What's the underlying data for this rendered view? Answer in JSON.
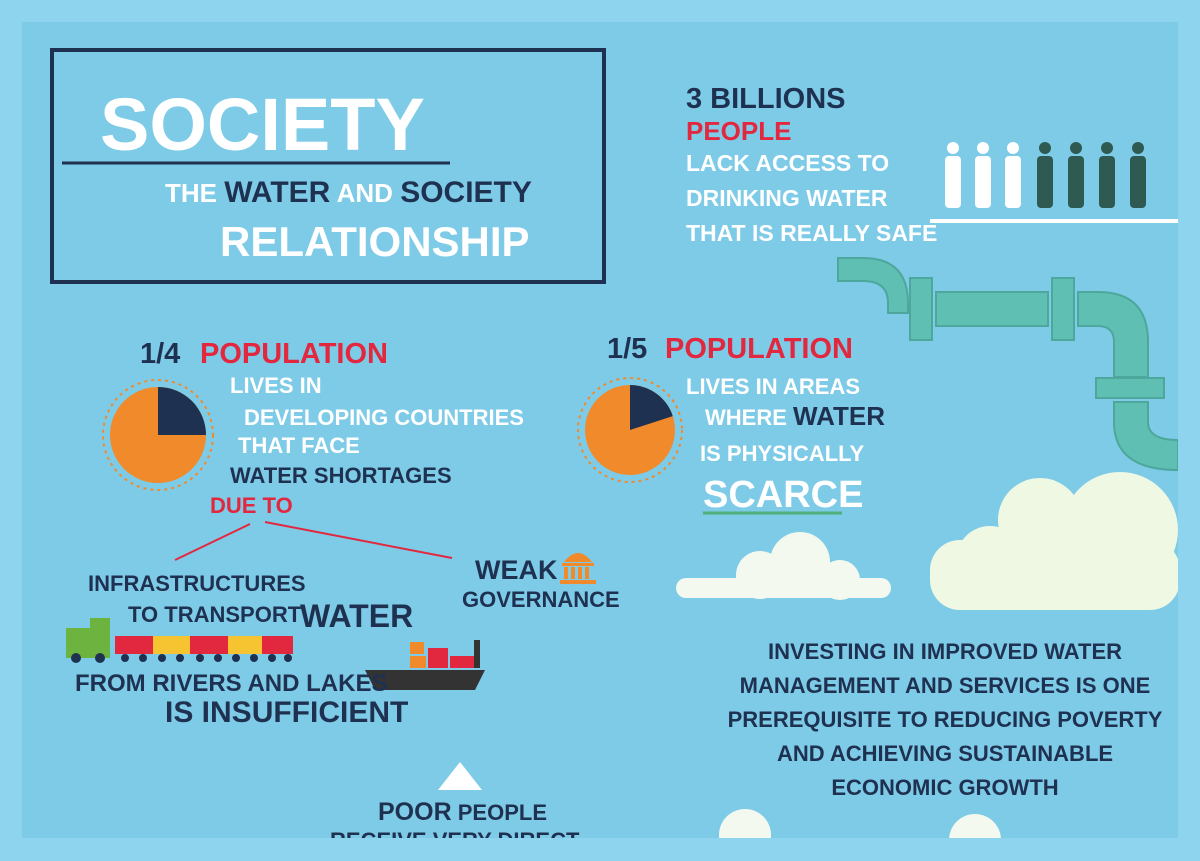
{
  "title": {
    "heading": "SOCIETY",
    "subtitle": [
      "THE",
      "WATER",
      "AND",
      "SOCIETY",
      "RELATIONSHIP"
    ]
  },
  "stat_people": {
    "number": "3 BILLIONS",
    "highlight": "PEOPLE",
    "lines": [
      "LACK ACCESS TO",
      "DRINKING WATER",
      "THAT IS REALLY SAFE"
    ]
  },
  "stat_quarter": {
    "fraction": "1/4",
    "label": "POPULATION",
    "lines": [
      "LIVES IN",
      "DEVELOPING COUNTRIES",
      "THAT FACE",
      "WATER SHORTAGES"
    ],
    "cause": "DUE TO"
  },
  "stat_fifth": {
    "fraction": "1/5",
    "label": "POPULATION",
    "lines": [
      "LIVES IN AREAS",
      "WHERE",
      "WATER",
      "IS PHYSICALLY",
      "SCARCE"
    ]
  },
  "infrastructure": [
    "INFRASTRUCTURES",
    "TO TRANSPORT",
    "WATER",
    "FROM RIVERS AND LAKES",
    "IS INSUFFICIENT"
  ],
  "governance": [
    "WEAK",
    "GOVERNANCE"
  ],
  "investing": [
    "INVESTING IN IMPROVED WATER",
    "MANAGEMENT AND SERVICES IS ONE",
    "PREREQUISITE TO REDUCING POVERTY",
    "AND ACHIEVING SUSTAINABLE",
    "ECONOMIC GROWTH"
  ],
  "poor": [
    "POOR",
    "PEOPLE",
    "RECEIVE VERY DIRECT"
  ]
}
